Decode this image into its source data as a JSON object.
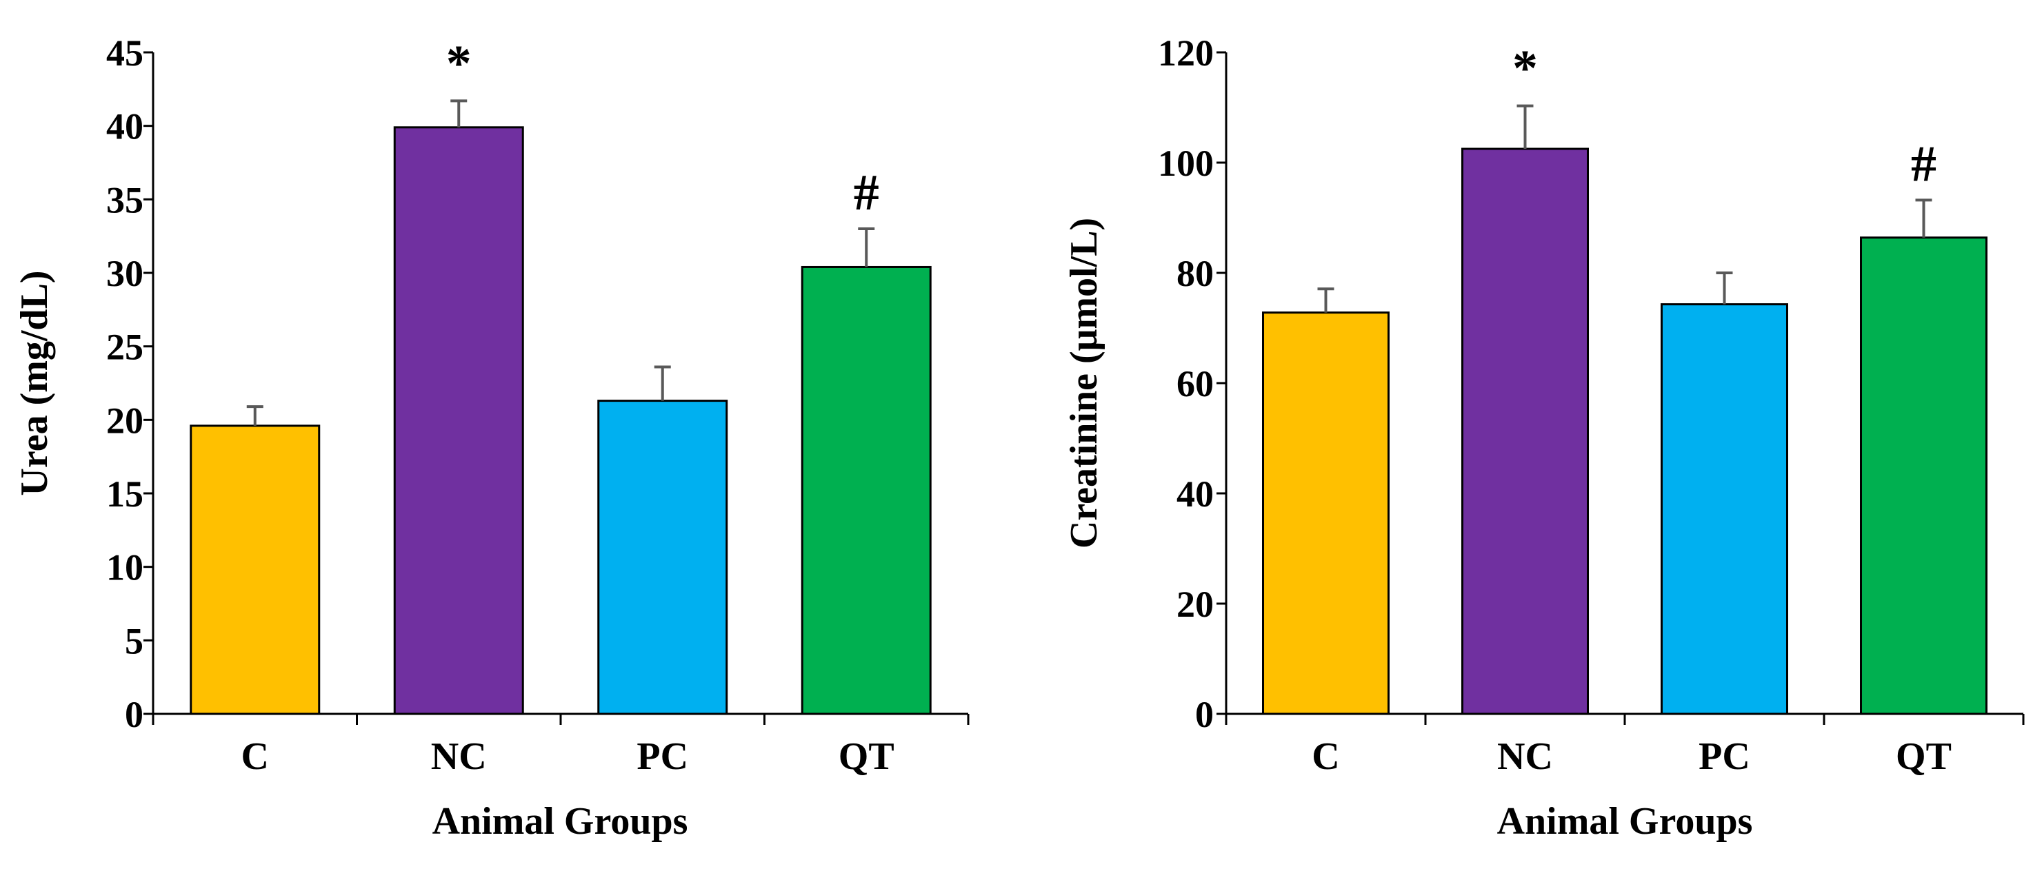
{
  "chart_data": [
    {
      "type": "bar",
      "title": "",
      "xlabel": "Animal Groups",
      "ylabel": "Urea (mg/dL)",
      "categories": [
        "C",
        "NC",
        "PC",
        "QT"
      ],
      "values": [
        19.6,
        39.9,
        21.3,
        30.4
      ],
      "errors": [
        1.3,
        1.8,
        2.3,
        2.6
      ],
      "annotations": [
        "",
        "*",
        "",
        "#"
      ],
      "colors": [
        "#FFC000",
        "#7030A0",
        "#00B0F0",
        "#00B050"
      ],
      "ylim": [
        0,
        45
      ],
      "yticks": [
        0,
        5,
        10,
        15,
        20,
        25,
        30,
        35,
        40,
        45
      ],
      "ytick_labels": [
        "0",
        "5",
        "10",
        "15",
        "20",
        "25",
        "30",
        "35",
        "40",
        "45"
      ],
      "grid": false
    },
    {
      "type": "bar",
      "title": "",
      "xlabel": "Animal Groups",
      "ylabel": "Creatinine (μmol/L)",
      "categories": [
        "C",
        "NC",
        "PC",
        "QT"
      ],
      "values": [
        72.8,
        102.5,
        74.3,
        86.4
      ],
      "errors": [
        4.3,
        7.8,
        5.7,
        6.8
      ],
      "annotations": [
        "",
        "*",
        "",
        "#"
      ],
      "colors": [
        "#FFC000",
        "#7030A0",
        "#00B0F0",
        "#00B050"
      ],
      "ylim": [
        0,
        120
      ],
      "yticks": [
        0,
        20,
        40,
        60,
        80,
        100,
        120
      ],
      "ytick_labels": [
        "0",
        "20",
        "40",
        "60",
        "80",
        "100",
        "120"
      ],
      "grid": false
    }
  ]
}
